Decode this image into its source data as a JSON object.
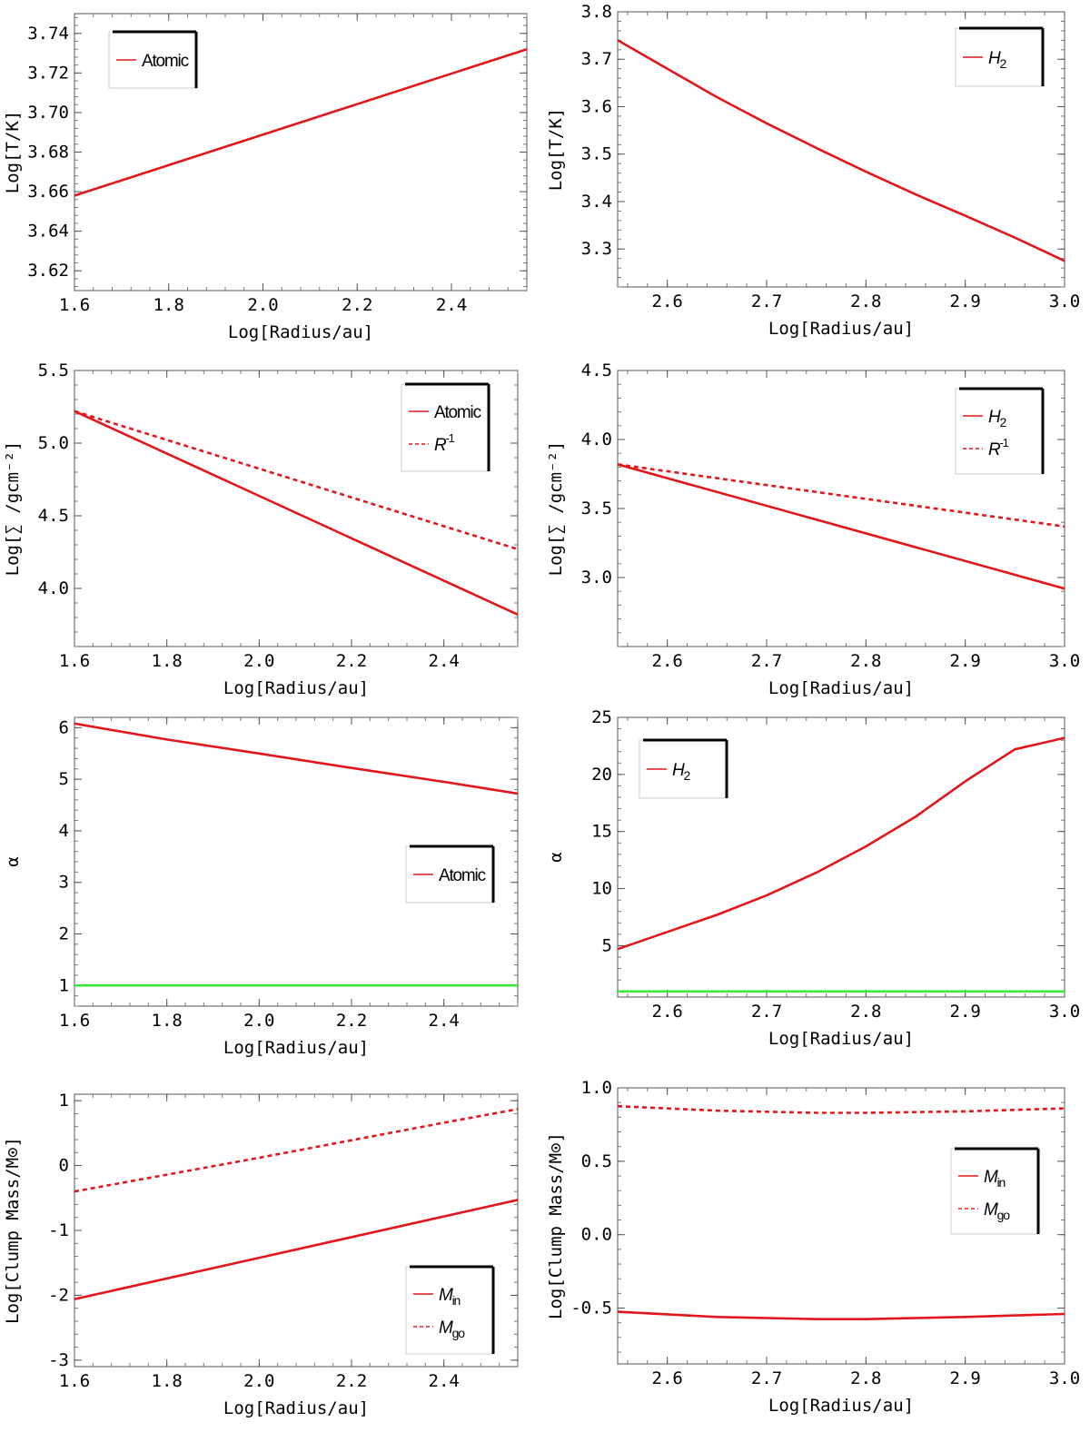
{
  "chart_data": [
    {
      "type": "line",
      "xlabel": "Log[Radius/au]",
      "ylabel": "Log[T/K]",
      "xlim": [
        1.6,
        2.56
      ],
      "ylim": [
        3.61,
        3.75
      ],
      "xticks": [
        1.6,
        1.8,
        2.0,
        2.2,
        2.4
      ],
      "yticks": [
        3.62,
        3.64,
        3.66,
        3.68,
        3.7,
        3.72,
        3.74
      ],
      "xtick_labels": [
        "1.6",
        "1.8",
        "2.0",
        "2.2",
        "2.4"
      ],
      "ytick_labels": [
        "3.62",
        "3.64",
        "3.66",
        "3.68",
        "3.70",
        "3.72",
        "3.74"
      ],
      "legend_position": "top-left",
      "series": [
        {
          "name": "Atomic",
          "color": "#e3161b",
          "dash": "solid",
          "legend": true,
          "x": [
            1.6,
            2.56
          ],
          "y": [
            3.658,
            3.732
          ]
        }
      ],
      "hlines": []
    },
    {
      "type": "line",
      "xlabel": "Log[Radius/au]",
      "ylabel": "Log[T/K]",
      "xlim": [
        2.55,
        3.0
      ],
      "ylim": [
        3.22,
        3.8
      ],
      "xticks": [
        2.6,
        2.7,
        2.8,
        2.9,
        3.0
      ],
      "yticks": [
        3.3,
        3.4,
        3.5,
        3.6,
        3.7,
        3.8
      ],
      "xtick_labels": [
        "2.6",
        "2.7",
        "2.8",
        "2.9",
        "3.0"
      ],
      "ytick_labels": [
        "3.3",
        "3.4",
        "3.5",
        "3.6",
        "3.7",
        "3.8"
      ],
      "legend_position": "top-right",
      "series": [
        {
          "name": "H",
          "sub": "2",
          "italic": true,
          "color": "#e3161b",
          "dash": "solid",
          "legend": true,
          "x": [
            2.55,
            2.6,
            2.65,
            2.7,
            2.75,
            2.8,
            2.85,
            2.9,
            2.95,
            3.0
          ],
          "y": [
            3.74,
            3.68,
            3.62,
            3.565,
            3.513,
            3.463,
            3.415,
            3.37,
            3.324,
            3.275
          ]
        }
      ],
      "hlines": []
    },
    {
      "type": "line",
      "xlabel": "Log[Radius/au]",
      "ylabel": "Log[∑ /gcm⁻²]",
      "xlim": [
        1.6,
        2.56
      ],
      "ylim": [
        3.6,
        5.5
      ],
      "xticks": [
        1.6,
        1.8,
        2.0,
        2.2,
        2.4
      ],
      "yticks": [
        4.0,
        4.5,
        5.0,
        5.5
      ],
      "xtick_labels": [
        "1.6",
        "1.8",
        "2.0",
        "2.2",
        "2.4"
      ],
      "ytick_labels": [
        "4.0",
        "4.5",
        "5.0",
        "5.5"
      ],
      "legend_position": "top-right",
      "series": [
        {
          "name": "Atomic",
          "color": "#e3161b",
          "dash": "solid",
          "legend": true,
          "x": [
            1.6,
            2.56
          ],
          "y": [
            5.22,
            3.82
          ]
        },
        {
          "name": "R",
          "sup": "-1",
          "italic": true,
          "color": "#e3161b",
          "dash": "dashed",
          "legend": true,
          "x": [
            1.6,
            2.56
          ],
          "y": [
            5.22,
            4.27
          ]
        }
      ],
      "hlines": []
    },
    {
      "type": "line",
      "xlabel": "Log[Radius/au]",
      "ylabel": "Log[∑ /gcm⁻²]",
      "xlim": [
        2.55,
        3.0
      ],
      "ylim": [
        2.5,
        4.5
      ],
      "xticks": [
        2.6,
        2.7,
        2.8,
        2.9,
        3.0
      ],
      "yticks": [
        3.0,
        3.5,
        4.0,
        4.5
      ],
      "xtick_labels": [
        "2.6",
        "2.7",
        "2.8",
        "2.9",
        "3.0"
      ],
      "ytick_labels": [
        "3.0",
        "3.5",
        "4.0",
        "4.5"
      ],
      "legend_position": "top-right",
      "series": [
        {
          "name": "H",
          "sub": "2",
          "italic": true,
          "color": "#e3161b",
          "dash": "solid",
          "legend": true,
          "x": [
            2.55,
            3.0
          ],
          "y": [
            3.82,
            2.92
          ]
        },
        {
          "name": "R",
          "sup": "-1",
          "italic": true,
          "color": "#e3161b",
          "dash": "dashed",
          "legend": true,
          "x": [
            2.55,
            3.0
          ],
          "y": [
            3.82,
            3.37
          ]
        }
      ],
      "hlines": []
    },
    {
      "type": "line",
      "xlabel": "Log[Radius/au]",
      "ylabel": "α",
      "xlim": [
        1.6,
        2.56
      ],
      "ylim": [
        0.6,
        6.2
      ],
      "xticks": [
        1.6,
        1.8,
        2.0,
        2.2,
        2.4
      ],
      "yticks": [
        1,
        2,
        3,
        4,
        5,
        6
      ],
      "xtick_labels": [
        "1.6",
        "1.8",
        "2.0",
        "2.2",
        "2.4"
      ],
      "ytick_labels": [
        "1",
        "2",
        "3",
        "4",
        "5",
        "6"
      ],
      "legend_position": "right",
      "series": [
        {
          "name": "Atomic",
          "color": "#e3161b",
          "dash": "solid",
          "legend": true,
          "x": [
            1.6,
            1.8,
            2.0,
            2.2,
            2.4,
            2.56
          ],
          "y": [
            6.08,
            5.77,
            5.5,
            5.22,
            4.95,
            4.72
          ]
        }
      ],
      "hlines": [
        {
          "y": 1,
          "color": "#33ee33"
        }
      ]
    },
    {
      "type": "line",
      "xlabel": "Log[Radius/au]",
      "ylabel": "α",
      "xlim": [
        2.55,
        3.0
      ],
      "ylim": [
        0.5,
        25
      ],
      "xticks": [
        2.6,
        2.7,
        2.8,
        2.9,
        3.0
      ],
      "yticks": [
        5,
        10,
        15,
        20,
        25
      ],
      "xtick_labels": [
        "2.6",
        "2.7",
        "2.8",
        "2.9",
        "3.0"
      ],
      "ytick_labels": [
        "5",
        "10",
        "15",
        "20",
        "25"
      ],
      "legend_position": "top-left",
      "series": [
        {
          "name": "H",
          "sub": "2",
          "italic": true,
          "color": "#e3161b",
          "dash": "solid",
          "legend": true,
          "x": [
            2.55,
            2.6,
            2.65,
            2.7,
            2.75,
            2.8,
            2.85,
            2.9,
            2.95,
            3.0
          ],
          "y": [
            4.7,
            6.2,
            7.7,
            9.4,
            11.4,
            13.7,
            16.3,
            19.4,
            22.2,
            23.2
          ]
        }
      ],
      "hlines": [
        {
          "y": 1,
          "color": "#33ee33"
        }
      ]
    },
    {
      "type": "line",
      "xlabel": "Log[Radius/au]",
      "ylabel": "Log[Clump Mass/M⊙]",
      "xlim": [
        1.6,
        2.56
      ],
      "ylim": [
        -3.1,
        1.1
      ],
      "xticks": [
        1.6,
        1.8,
        2.0,
        2.2,
        2.4
      ],
      "yticks": [
        -3,
        -2,
        -1,
        0,
        1
      ],
      "xtick_labels": [
        "1.6",
        "1.8",
        "2.0",
        "2.2",
        "2.4"
      ],
      "ytick_labels": [
        "-3",
        "-2",
        "-1",
        "0",
        "1"
      ],
      "legend_position": "bottom-right",
      "series": [
        {
          "name": "M",
          "sub": "in",
          "italic": true,
          "color": "#e3161b",
          "dash": "solid",
          "legend": true,
          "x": [
            1.6,
            2.56
          ],
          "y": [
            -2.06,
            -0.53
          ]
        },
        {
          "name": "M",
          "sub": "go",
          "italic": true,
          "color": "#e3161b",
          "dash": "dashed",
          "legend": true,
          "x": [
            1.6,
            1.8,
            2.0,
            2.2,
            2.4,
            2.56
          ],
          "y": [
            -0.4,
            -0.14,
            0.12,
            0.39,
            0.66,
            0.87
          ]
        }
      ],
      "hlines": []
    },
    {
      "type": "line",
      "xlabel": "Log[Radius/au]",
      "ylabel": "Log[Clump Mass/M⊙]",
      "xlim": [
        2.55,
        3.0
      ],
      "ylim": [
        -0.88,
        1.0
      ],
      "xticks": [
        2.6,
        2.7,
        2.8,
        2.9,
        3.0
      ],
      "yticks": [
        -0.5,
        0.0,
        0.5,
        1.0
      ],
      "xtick_labels": [
        "2.6",
        "2.7",
        "2.8",
        "2.9",
        "3.0"
      ],
      "ytick_labels": [
        "-0.5",
        "0.0",
        "0.5",
        "1.0"
      ],
      "legend_position": "right",
      "series": [
        {
          "name": "M",
          "sub": "in",
          "italic": true,
          "color": "#e3161b",
          "dash": "solid",
          "legend": true,
          "x": [
            2.55,
            2.65,
            2.75,
            2.8,
            2.9,
            3.0
          ],
          "y": [
            -0.525,
            -0.56,
            -0.575,
            -0.575,
            -0.56,
            -0.54
          ]
        },
        {
          "name": "M",
          "sub": "go",
          "italic": true,
          "color": "#e3161b",
          "dash": "dashed",
          "legend": true,
          "x": [
            2.55,
            2.65,
            2.75,
            2.8,
            2.9,
            3.0
          ],
          "y": [
            0.875,
            0.845,
            0.83,
            0.83,
            0.84,
            0.86
          ]
        }
      ],
      "hlines": []
    }
  ]
}
